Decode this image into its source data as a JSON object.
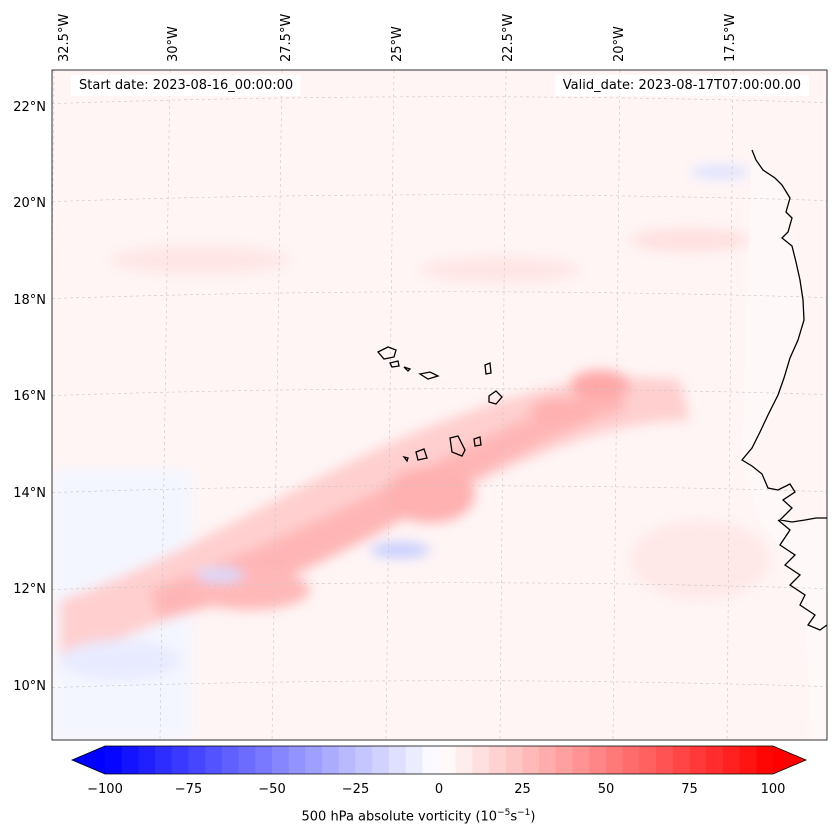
{
  "header": {
    "start_date": "Start date: 2023-08-16_00:00:00",
    "valid_date": "Valid_date: 2023-08-17T07:00:00.00"
  },
  "map": {
    "lon_labels": [
      "32.5°W",
      "30°W",
      "27.5°W",
      "25°W",
      "22.5°W",
      "20°W",
      "17.5°W"
    ],
    "lat_labels": [
      "22°N",
      "20°N",
      "18°N",
      "16°N",
      "14°N",
      "12°N",
      "10°N"
    ]
  },
  "colorbar": {
    "ticks": [
      "−100",
      "−75",
      "−50",
      "−25",
      "0",
      "25",
      "50",
      "75",
      "100"
    ],
    "label_prefix": "500 hPa absolute vorticity (10",
    "label_exp1": "−5",
    "label_mid": "s",
    "label_exp2": "−1",
    "label_suffix": ")",
    "min": -100,
    "max": 100,
    "color_low": "#0000ff",
    "color_mid": "#ffffff",
    "color_high": "#ff0000"
  }
}
